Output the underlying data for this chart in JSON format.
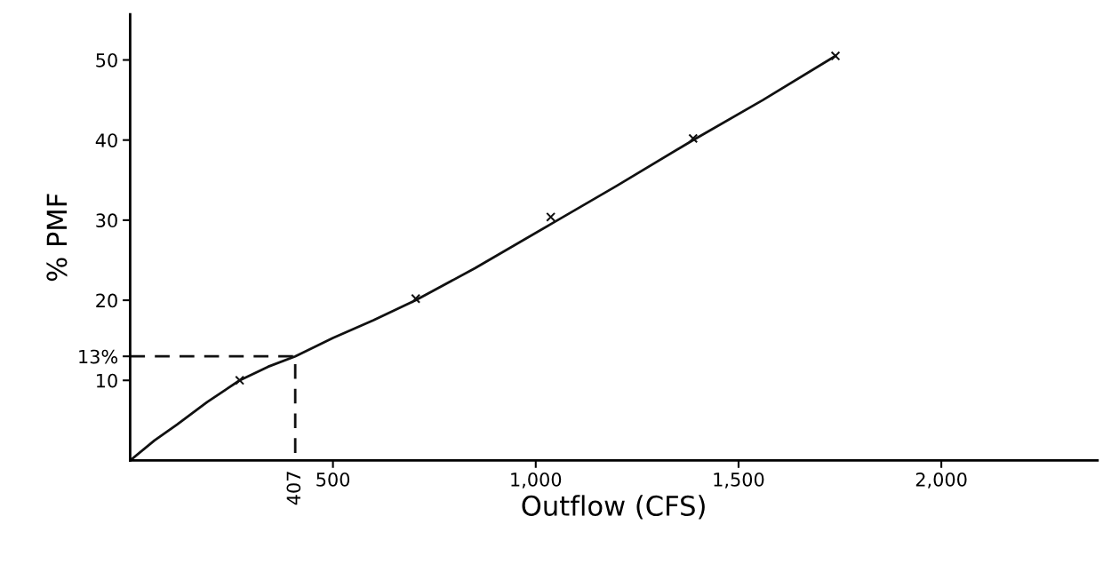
{
  "chart_data": {
    "type": "line",
    "xlabel": "Outflow (CFS)",
    "ylabel": "% PMF",
    "xlim": [
      0,
      2385
    ],
    "ylim": [
      0,
      55.7
    ],
    "annotations": [
      {
        "text": "407",
        "x": 407,
        "y": 0
      }
    ],
    "xticks": [
      {
        "value": 500,
        "label": "500"
      },
      {
        "value": 1000,
        "label": "1,000"
      },
      {
        "value": 1500,
        "label": "1,500"
      },
      {
        "value": 2000,
        "label": "2,000"
      }
    ],
    "yticks": [
      10,
      {
        "value": 13,
        "label": "13%"
      },
      20,
      30,
      40,
      50
    ],
    "grid": false,
    "legend": false,
    "series": [
      {
        "color": "#111111",
        "line_style": "solid",
        "marker": "none",
        "x": [
          0,
          60,
          116,
          190,
          270,
          340,
          407,
          500,
          600,
          704,
          850,
          1037,
          1200,
          1388,
          1560,
          1739
        ],
        "values": [
          0,
          2.5,
          4.5,
          7.3,
          10,
          11.7,
          13,
          15.3,
          17.5,
          20,
          24,
          29.5,
          34.3,
          40,
          45,
          50.5
        ]
      },
      {
        "type": "scatter",
        "color": "#111111",
        "marker": "cross",
        "x": [
          270,
          704,
          1037,
          1388,
          1739
        ],
        "values": [
          10,
          20.2,
          30.4,
          40.2,
          50.5
        ]
      },
      {
        "type": "line",
        "color": "#111111",
        "line_style": "dashed",
        "marker": "none",
        "x": [
          0,
          407,
          407
        ],
        "values": [
          13,
          13,
          0
        ]
      }
    ]
  }
}
